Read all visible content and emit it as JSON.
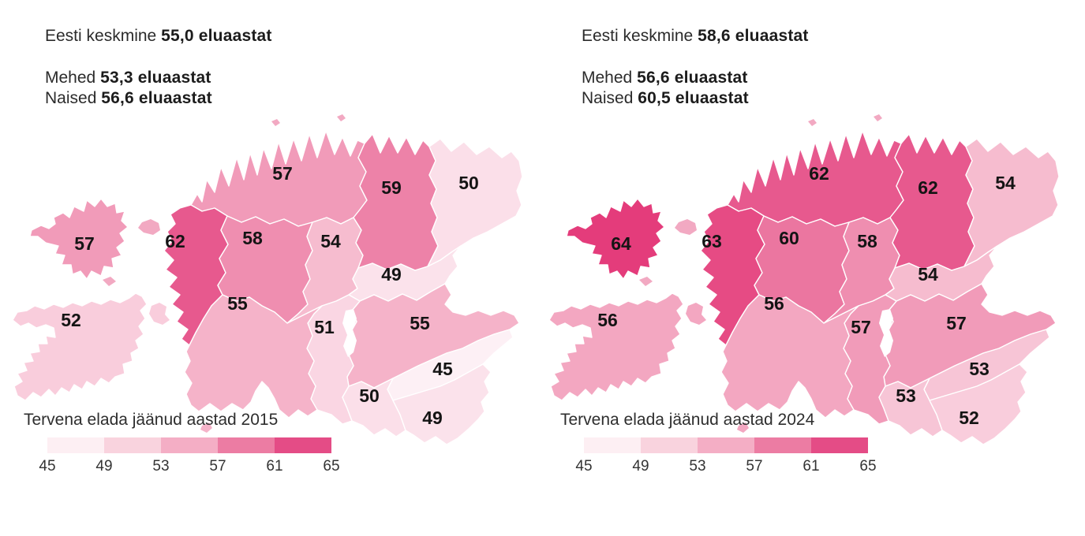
{
  "panels": [
    {
      "year": "2015",
      "stats": {
        "avg_label": "Eesti keskmine",
        "avg_value": "55,0 eluaastat",
        "men_label": "Mehed",
        "men_value": "53,3 eluaastat",
        "women_label": "Naised",
        "women_value": "56,6 eluaastat"
      },
      "legend_title": "Tervena elada jäänud aastad 2015"
    },
    {
      "year": "2024",
      "stats": {
        "avg_label": "Eesti keskmine",
        "avg_value": "58,6 eluaastat",
        "men_label": "Mehed",
        "men_value": "56,6 eluaastat",
        "women_label": "Naised",
        "women_value": "60,5 eluaastat"
      },
      "legend_title": "Tervena elada jäänud aastad 2024"
    }
  ],
  "legend": {
    "ticks": [
      "45",
      "49",
      "53",
      "57",
      "61",
      "65"
    ],
    "colors": [
      "#fdeff3",
      "#f9d3de",
      "#f4aec5",
      "#ec7ca3",
      "#e44c86"
    ]
  },
  "color_scale": {
    "domain": [
      45,
      50,
      55,
      60,
      65
    ],
    "colors": [
      "#fdf0f5",
      "#fbdfe9",
      "#f5b3c9",
      "#eb76a0",
      "#e22e72"
    ],
    "islet_color": "#f2a9c2"
  },
  "chart_data": {
    "type": "heatmap",
    "variant": "choropleth-map-of-estonia-counties",
    "title": "Tervena elada jäänud aastad (healthy life years remaining), Estonia",
    "legend_ticks": [
      45,
      49,
      53,
      57,
      61,
      65
    ],
    "series": [
      {
        "name": "2015",
        "national_avg": 55.0,
        "men": 53.3,
        "women": 56.6
      },
      {
        "name": "2024",
        "national_avg": 58.6,
        "men": 56.6,
        "women": 60.5
      }
    ],
    "regions": [
      {
        "id": "harjumaa",
        "name": "Harjumaa",
        "values": {
          "2015": 57,
          "2024": 62
        }
      },
      {
        "id": "laanevirumaa",
        "name": "Lääne-Virumaa",
        "values": {
          "2015": 59,
          "2024": 62
        }
      },
      {
        "id": "idavirumaa",
        "name": "Ida-Virumaa",
        "values": {
          "2015": 50,
          "2024": 54
        }
      },
      {
        "id": "hiiumaa",
        "name": "Hiiumaa",
        "values": {
          "2015": 57,
          "2024": 64
        }
      },
      {
        "id": "laanemaa",
        "name": "Läänemaa",
        "values": {
          "2015": 62,
          "2024": 63
        }
      },
      {
        "id": "raplamaa",
        "name": "Raplamaa",
        "values": {
          "2015": 58,
          "2024": 60
        }
      },
      {
        "id": "jarvamaa",
        "name": "Järvamaa",
        "values": {
          "2015": 54,
          "2024": 58
        }
      },
      {
        "id": "jogevamaa",
        "name": "Jõgevamaa",
        "values": {
          "2015": 49,
          "2024": 54
        }
      },
      {
        "id": "saaremaa",
        "name": "Saaremaa",
        "values": {
          "2015": 52,
          "2024": 56
        }
      },
      {
        "id": "parnumaa",
        "name": "Pärnumaa",
        "values": {
          "2015": 55,
          "2024": 56
        }
      },
      {
        "id": "viljandimaa",
        "name": "Viljandimaa",
        "values": {
          "2015": 51,
          "2024": 57
        }
      },
      {
        "id": "tartumaa",
        "name": "Tartumaa",
        "values": {
          "2015": 55,
          "2024": 57
        }
      },
      {
        "id": "polvamaa",
        "name": "Põlvamaa",
        "values": {
          "2015": 45,
          "2024": 53
        }
      },
      {
        "id": "valgamaa",
        "name": "Valgamaa",
        "values": {
          "2015": 50,
          "2024": 53
        }
      },
      {
        "id": "vorumaa",
        "name": "Võrumaa",
        "values": {
          "2015": 49,
          "2024": 52
        }
      }
    ]
  }
}
